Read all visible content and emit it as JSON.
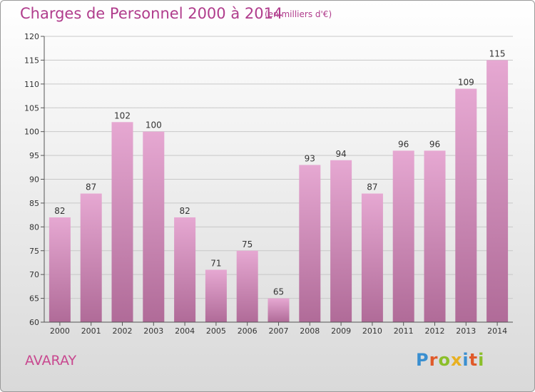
{
  "header": {
    "title": "Charges de Personnel 2000 à 2014",
    "unit": "(en milliers d'€)"
  },
  "footer": {
    "location": "AVARAY",
    "brand": "Proxiti"
  },
  "colors": {
    "bar_light": "#e6a8d2",
    "bar_dark": "#b06b98",
    "title": "#b03c8c"
  },
  "chart_data": {
    "type": "bar",
    "title": "Charges de Personnel 2000 à 2014",
    "subtitle": "(en milliers d'€)",
    "categories": [
      "2000",
      "2001",
      "2002",
      "2003",
      "2004",
      "2005",
      "2006",
      "2007",
      "2008",
      "2009",
      "2010",
      "2011",
      "2012",
      "2013",
      "2014"
    ],
    "values": [
      82,
      87,
      102,
      100,
      82,
      71,
      75,
      65,
      93,
      94,
      87,
      96,
      96,
      109,
      115
    ],
    "ylim": [
      60,
      120
    ],
    "yticks": [
      60,
      65,
      70,
      75,
      80,
      85,
      90,
      95,
      100,
      105,
      110,
      115,
      120
    ],
    "grid": true,
    "data_labels": true
  }
}
